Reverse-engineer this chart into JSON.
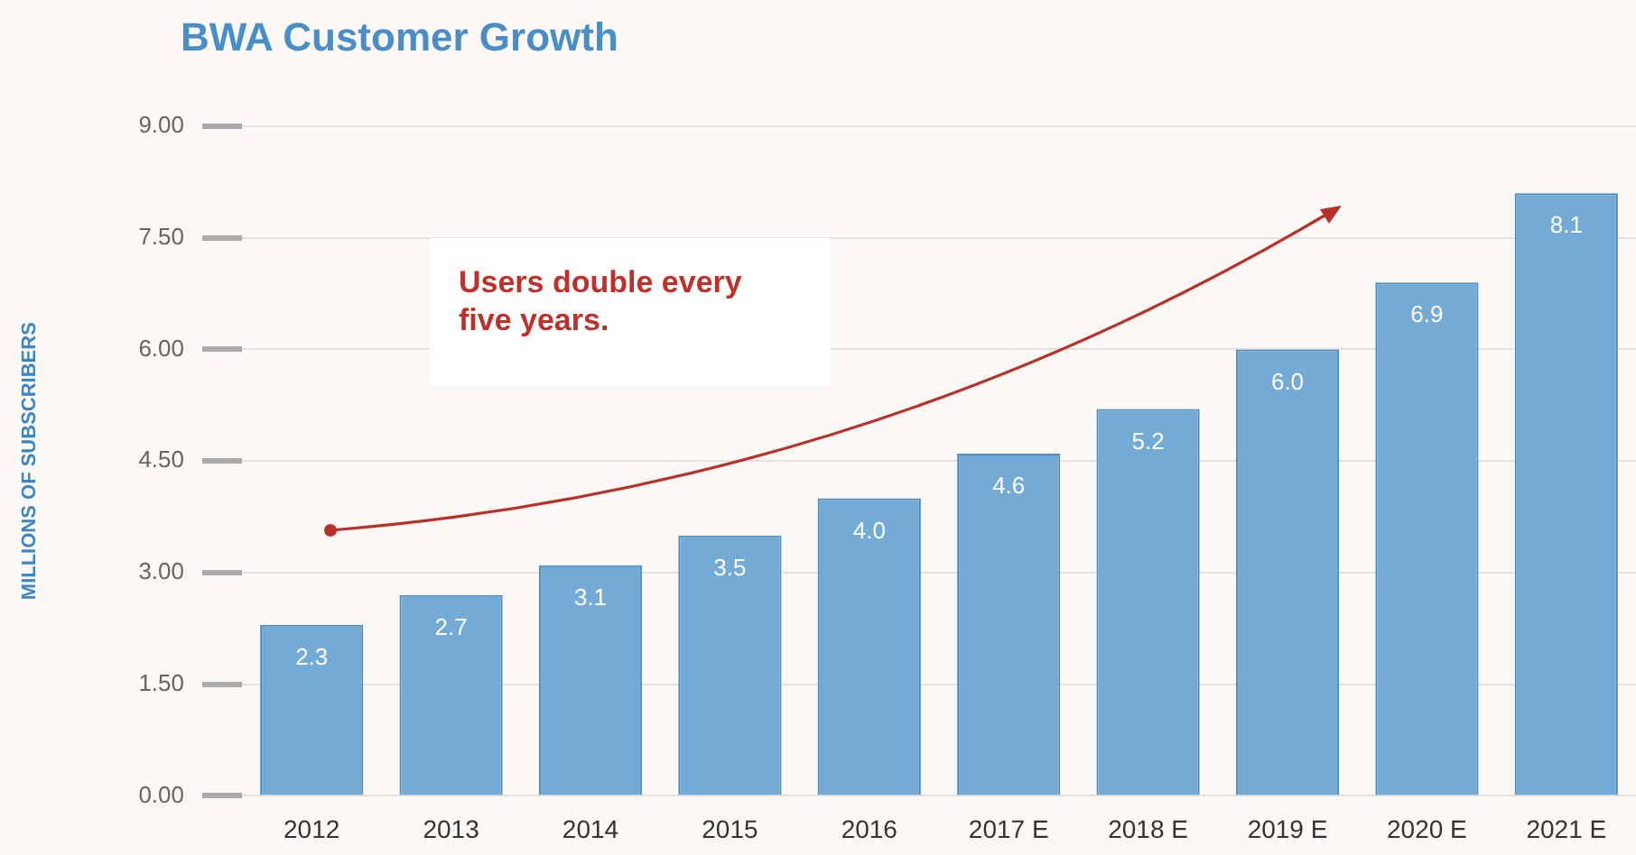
{
  "chart_data": {
    "type": "bar",
    "title": "BWA Customer Growth",
    "ylabel": "MILLIONS OF SUBSCRIBERS",
    "categories": [
      "2012",
      "2013",
      "2014",
      "2015",
      "2016",
      "2017 E",
      "2018 E",
      "2019 E",
      "2020 E",
      "2021 E"
    ],
    "values": [
      2.3,
      2.7,
      3.1,
      3.5,
      4.0,
      4.6,
      5.2,
      6.0,
      6.9,
      8.1
    ],
    "value_labels": [
      "2.3",
      "2.7",
      "3.1",
      "3.5",
      "4.0",
      "4.6",
      "5.2",
      "6.0",
      "6.9",
      "8.1"
    ],
    "color": "#74aad6",
    "ylim": [
      0,
      9
    ],
    "yticks": [
      {
        "value": 0,
        "label": "0.00"
      },
      {
        "value": 1.5,
        "label": "1.50"
      },
      {
        "value": 3,
        "label": "3.00"
      },
      {
        "value": 4.5,
        "label": "4.50"
      },
      {
        "value": 6,
        "label": "6.00"
      },
      {
        "value": 7.5,
        "label": "7.50"
      },
      {
        "value": 9,
        "label": "9.00"
      }
    ],
    "grid": "y",
    "annotations": [
      "Users double every five years."
    ]
  }
}
